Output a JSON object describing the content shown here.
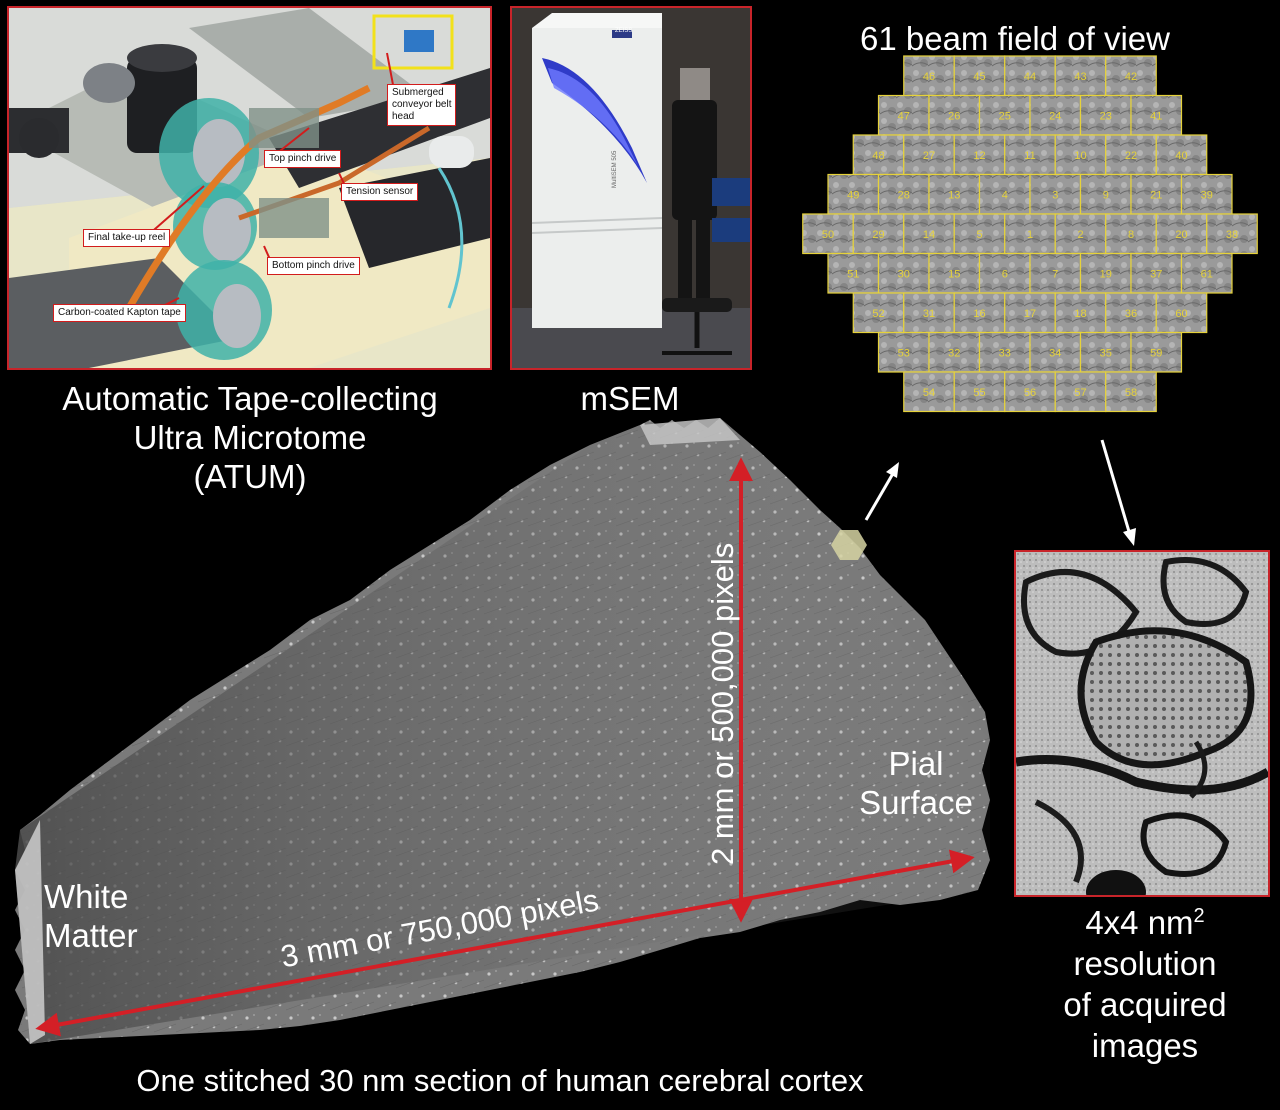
{
  "atum": {
    "caption_lines": [
      "Automatic Tape-collecting",
      "Ultra Microtome",
      "(ATUM)"
    ],
    "callouts": {
      "submerged": [
        "Submerged",
        "conveyor  belt",
        "head"
      ],
      "top_pinch": "Top pinch drive",
      "tension": "Tension sensor",
      "take_up": "Final take-up reel",
      "bottom_pinch": "Bottom pinch drive",
      "tape": "Carbon-coated Kapton tape"
    }
  },
  "msem": {
    "caption": "mSEM",
    "machine_brand": "ZEISS",
    "machine_model": "MultiSEM 505"
  },
  "field_of_view": {
    "title": "61 beam field of view",
    "rows": [
      [
        "46",
        "45",
        "44",
        "43",
        "42"
      ],
      [
        "47",
        "26",
        "25",
        "24",
        "23",
        "41"
      ],
      [
        "48",
        "27",
        "12",
        "11",
        "10",
        "22",
        "40"
      ],
      [
        "49",
        "28",
        "13",
        "4",
        "3",
        "9",
        "21",
        "39"
      ],
      [
        "50",
        "29",
        "14",
        "5",
        "1",
        "2",
        "8",
        "20",
        "38"
      ],
      [
        "51",
        "30",
        "15",
        "6",
        "7",
        "19",
        "37",
        "61"
      ],
      [
        "52",
        "31",
        "16",
        "17",
        "18",
        "36",
        "60"
      ],
      [
        "53",
        "32",
        "33",
        "34",
        "35",
        "59"
      ],
      [
        "54",
        "55",
        "56",
        "57",
        "58"
      ]
    ]
  },
  "section": {
    "vertical_label": "2 mm or 500,000 pixels",
    "horizontal_label": "3 mm or 750,000 pixels",
    "white_matter_lines": [
      "White",
      "Matter"
    ],
    "pial_lines": [
      "Pial",
      "Surface"
    ],
    "caption": "One stitched 30 nm section of human cerebral cortex"
  },
  "resolution": {
    "line1_base": "4x4 nm",
    "line1_sup": "2",
    "lines": [
      "resolution",
      "of acquired",
      "images"
    ]
  },
  "colors": {
    "arrow_red": "#d41f26",
    "border_red": "#c8242a",
    "tile_yellow": "#e6d23a"
  }
}
